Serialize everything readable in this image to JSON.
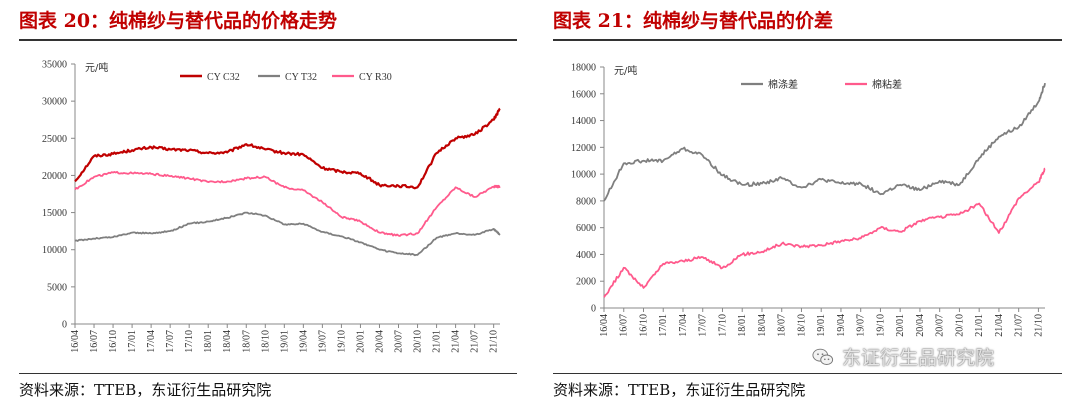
{
  "left": {
    "title": "图表 20：纯棉纱与替代品的价格走势",
    "source": "资料来源：TTEB，东证衍生品研究院"
  },
  "right": {
    "title": "图表 21：纯棉纱与替代品的价差",
    "source": "资料来源：TTEB，东证衍生品研究院"
  },
  "watermark": {
    "text": "东证衍生品研究院",
    "icon": "wechat-icon"
  },
  "colors": {
    "title": "#c00000",
    "red": "#c00000",
    "gray": "#7f7f7f",
    "pink": "#ff5a8c"
  },
  "chart_data": [
    {
      "type": "line",
      "unit_label": "元/吨",
      "ylim": [
        0,
        35000
      ],
      "yticks": [
        0,
        5000,
        10000,
        15000,
        20000,
        25000,
        30000,
        35000
      ],
      "x_tick_labels": [
        "16/04",
        "16/07",
        "16/10",
        "17/01",
        "17/04",
        "17/07",
        "17/10",
        "18/01",
        "18/04",
        "18/07",
        "18/10",
        "19/01",
        "19/04",
        "19/07",
        "19/10",
        "20/01",
        "20/04",
        "20/07",
        "20/10",
        "21/01",
        "21/04",
        "21/07",
        "21/10"
      ],
      "x": [
        "16/04",
        "16/07",
        "16/10",
        "17/01",
        "17/04",
        "17/07",
        "17/10",
        "18/01",
        "18/04",
        "18/07",
        "18/10",
        "19/01",
        "19/04",
        "19/07",
        "19/10",
        "20/01",
        "20/04",
        "20/07",
        "20/10",
        "21/01",
        "21/04",
        "21/07",
        "21/10",
        "21/11"
      ],
      "legend_position": "top",
      "series": [
        {
          "name": "CY C32",
          "color": "#c00000",
          "values": [
            19200,
            22600,
            22900,
            23400,
            23800,
            23500,
            23400,
            23000,
            23100,
            24200,
            23500,
            23000,
            22800,
            21000,
            20500,
            20300,
            18700,
            18600,
            18400,
            23000,
            25000,
            25500,
            27500,
            29000
          ]
        },
        {
          "name": "CY T32",
          "color": "#7f7f7f",
          "values": [
            11200,
            11500,
            11700,
            12300,
            12200,
            12500,
            13500,
            13800,
            14300,
            15000,
            14600,
            13400,
            13500,
            12400,
            11800,
            11000,
            10000,
            9500,
            9300,
            11600,
            12200,
            12000,
            12800,
            12000
          ]
        },
        {
          "name": "CY R30",
          "color": "#ff5a8c",
          "values": [
            18100,
            19800,
            20400,
            20300,
            20200,
            19900,
            19600,
            19100,
            19200,
            19600,
            19800,
            18400,
            18000,
            16400,
            14400,
            13800,
            12300,
            11900,
            12200,
            15700,
            18400,
            17100,
            18500,
            18500
          ]
        }
      ]
    },
    {
      "type": "line",
      "unit_label": "元/吨",
      "ylim": [
        0,
        18000
      ],
      "yticks": [
        0,
        2000,
        4000,
        6000,
        8000,
        10000,
        12000,
        14000,
        16000,
        18000
      ],
      "x_tick_labels": [
        "16/04",
        "16/07",
        "16/10",
        "17/01",
        "17/04",
        "17/07",
        "17/10",
        "18/01",
        "18/04",
        "18/07",
        "18/10",
        "19/01",
        "19/04",
        "19/07",
        "19/10",
        "20/01",
        "20/04",
        "20/07",
        "20/10",
        "21/01",
        "21/04",
        "21/07",
        "21/10"
      ],
      "x": [
        "16/04",
        "16/07",
        "16/10",
        "17/01",
        "17/04",
        "17/07",
        "17/10",
        "18/01",
        "18/04",
        "18/07",
        "18/10",
        "19/01",
        "19/04",
        "19/07",
        "19/10",
        "20/01",
        "20/04",
        "20/07",
        "20/10",
        "21/01",
        "21/04",
        "21/07",
        "21/10",
        "21/11"
      ],
      "legend_position": "top",
      "series": [
        {
          "name": "棉涤差",
          "color": "#7f7f7f",
          "values": [
            8000,
            10800,
            11000,
            11000,
            11900,
            11400,
            9900,
            9200,
            9300,
            9700,
            9000,
            9600,
            9300,
            9300,
            8500,
            9200,
            8800,
            9500,
            9200,
            11200,
            12800,
            13500,
            15400,
            16800
          ]
        },
        {
          "name": "棉粘差",
          "color": "#ff5a8c",
          "values": [
            800,
            3000,
            1500,
            3300,
            3500,
            3800,
            3000,
            4000,
            4200,
            4800,
            4600,
            4700,
            5000,
            5200,
            6000,
            5700,
            6500,
            6800,
            7000,
            7800,
            5600,
            8200,
            9400,
            10400
          ]
        }
      ]
    }
  ]
}
